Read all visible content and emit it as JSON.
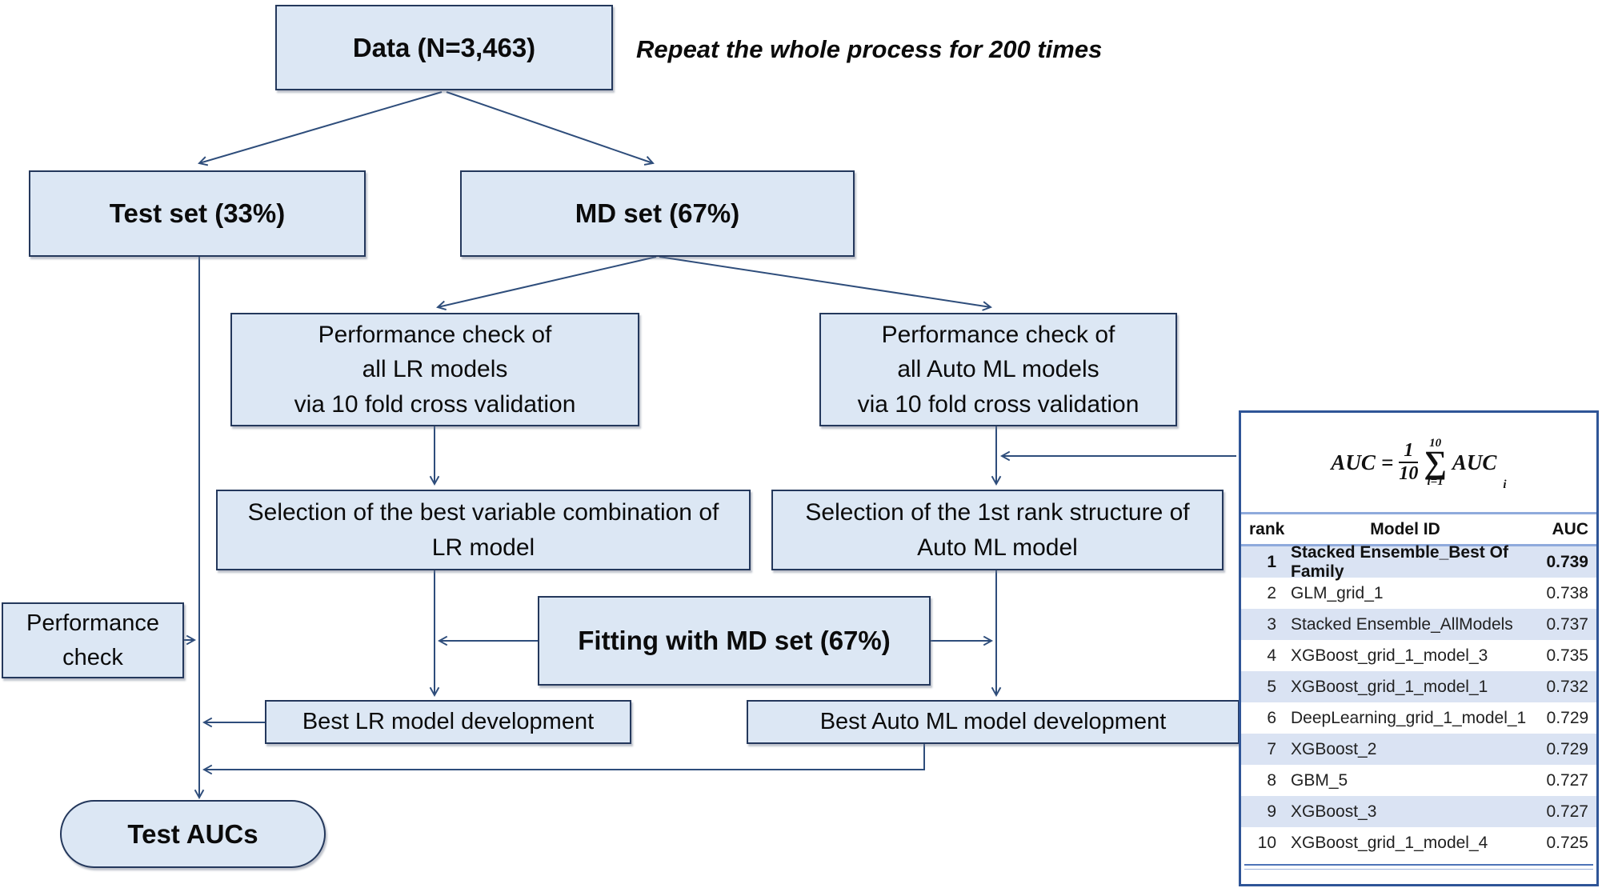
{
  "note": {
    "repeat_text": "Repeat the whole process for 200 times"
  },
  "boxes": {
    "data": "Data (N=3,463)",
    "test_set": "Test set (33%)",
    "md_set": "MD set (67%)",
    "perf_lr": "Performance check of\nall LR models\nvia 10 fold cross validation",
    "perf_automl": "Performance check of\nall Auto ML models\nvia 10 fold cross validation",
    "sel_lr": "Selection of the best variable combination of\nLR model",
    "sel_automl": "Selection of the 1st rank structure of\nAuto ML model",
    "fitting": "Fitting with MD set (67%)",
    "perf_check": "Performance\ncheck",
    "best_lr": "Best LR model development",
    "best_automl": "Best Auto ML model development",
    "test_aucs": "Test AUCs"
  },
  "panel": {
    "formula": {
      "lhs": "AUC",
      "equals": "=",
      "numerator": "1",
      "denominator": "10",
      "sigma": "∑",
      "upper": "10",
      "lower": "i=1",
      "term": "AUC",
      "term_sub": "i"
    },
    "table": {
      "headers": [
        "rank",
        "Model ID",
        "AUC"
      ],
      "rows": [
        {
          "rank": "1",
          "model_id": "Stacked Ensemble_Best Of Family",
          "auc": "0.739"
        },
        {
          "rank": "2",
          "model_id": "GLM_grid_1",
          "auc": "0.738"
        },
        {
          "rank": "3",
          "model_id": "Stacked Ensemble_AllModels",
          "auc": "0.737"
        },
        {
          "rank": "4",
          "model_id": "XGBoost_grid_1_model_3",
          "auc": "0.735"
        },
        {
          "rank": "5",
          "model_id": "XGBoost_grid_1_model_1",
          "auc": "0.732"
        },
        {
          "rank": "6",
          "model_id": "DeepLearning_grid_1_model_1",
          "auc": "0.729"
        },
        {
          "rank": "7",
          "model_id": "XGBoost_2",
          "auc": "0.729"
        },
        {
          "rank": "8",
          "model_id": "GBM_5",
          "auc": "0.727"
        },
        {
          "rank": "9",
          "model_id": "XGBoost_3",
          "auc": "0.727"
        },
        {
          "rank": "10",
          "model_id": "XGBoost_grid_1_model_4",
          "auc": "0.725"
        }
      ]
    }
  },
  "colors": {
    "box_fill": "#dce7f4",
    "box_border": "#24385c",
    "connector": "#2e4d7b",
    "panel_border": "#2f5597",
    "table_rule": "#8faadc",
    "row_shade": "#dae3f3"
  }
}
